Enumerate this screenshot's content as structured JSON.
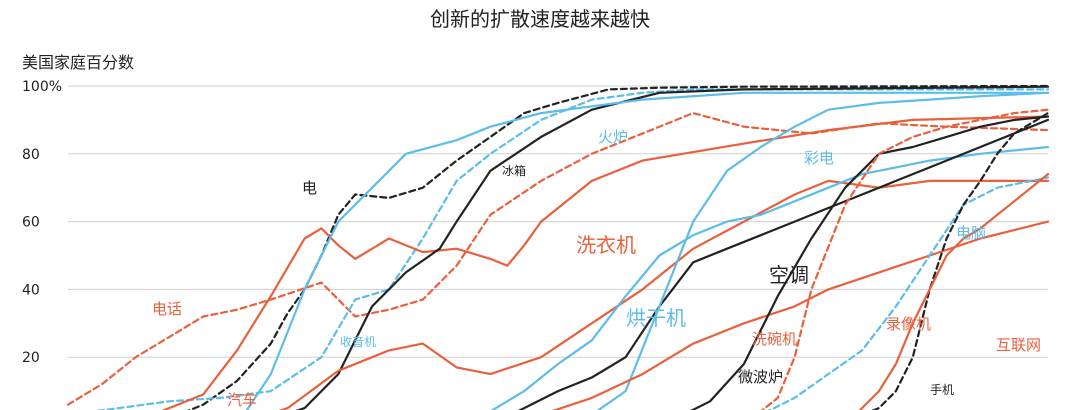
{
  "chart_data": {
    "type": "line",
    "title": "创新的扩散速度越来越快",
    "ylabel": "美国家庭百分数",
    "xlabel": "",
    "xlim": [
      1900,
      2016
    ],
    "ylim": [
      0,
      100
    ],
    "yticks": [
      {
        "value": 100,
        "label": "100%"
      },
      {
        "value": 80,
        "label": "80"
      },
      {
        "value": 60,
        "label": "60"
      },
      {
        "value": 40,
        "label": "40"
      },
      {
        "value": 20,
        "label": "20"
      }
    ],
    "grid": true,
    "colors": {
      "orange": "#e8603c",
      "blue": "#5bbde8",
      "black": "#222222"
    },
    "series": [
      {
        "name": "电",
        "color": "black",
        "dash": true,
        "x": [
          1908,
          1912,
          1916,
          1920,
          1924,
          1926,
          1928,
          1930,
          1932,
          1934,
          1938,
          1942,
          1946,
          1950,
          1954,
          1958,
          1964,
          1970,
          1980,
          2016
        ],
        "y": [
          0,
          2,
          6,
          13,
          24,
          33,
          40,
          50,
          62,
          68,
          67,
          70,
          78,
          85,
          92,
          95,
          99,
          99.5,
          99.8,
          100
        ]
      },
      {
        "name": "电话",
        "color": "orange",
        "dash": true,
        "x": [
          1900,
          1904,
          1908,
          1912,
          1916,
          1920,
          1924,
          1930,
          1934,
          1938,
          1942,
          1946,
          1950,
          1956,
          1962,
          1968,
          1974,
          1980,
          1988,
          1996,
          2004,
          2016
        ],
        "y": [
          6,
          12,
          20,
          26,
          32,
          34,
          37,
          42,
          32,
          34,
          37,
          47,
          62,
          72,
          80,
          86,
          92,
          88,
          86,
          89,
          88,
          87
        ]
      },
      {
        "name": "收音机",
        "color": "blue",
        "dash": true,
        "x": [
          1900,
          1906,
          1912,
          1918,
          1924,
          1930,
          1934,
          1938,
          1942,
          1946,
          1950,
          1956,
          1962,
          1968,
          1974,
          1980,
          2016
        ],
        "y": [
          3,
          5,
          7,
          8,
          10,
          20,
          37,
          40,
          55,
          72,
          80,
          90,
          96,
          98,
          99,
          99,
          99
        ]
      },
      {
        "name": "汽车",
        "color": "orange",
        "dash": false,
        "x": [
          1905,
          1910,
          1916,
          1920,
          1924,
          1928,
          1930,
          1932,
          1934,
          1938,
          1942,
          1946,
          1950,
          1952,
          1954,
          1956,
          1962,
          1968,
          1980,
          1990,
          2000,
          2016
        ],
        "y": [
          0,
          3,
          9,
          22,
          38,
          55,
          58,
          53,
          49,
          55,
          51,
          52,
          49,
          47,
          53,
          60,
          72,
          78,
          83,
          87,
          90,
          91
        ]
      },
      {
        "name": "冰箱",
        "color": "black",
        "dash": false,
        "x": [
          1922,
          1928,
          1932,
          1936,
          1940,
          1944,
          1946,
          1950,
          1956,
          1962,
          1970,
          1980,
          2016
        ],
        "y": [
          0,
          5,
          15,
          35,
          45,
          52,
          60,
          75,
          85,
          93,
          98,
          99,
          99.8
        ]
      },
      {
        "name": "火炉",
        "color": "blue",
        "dash": false,
        "x": [
          1920,
          1924,
          1928,
          1932,
          1936,
          1940,
          1946,
          1950,
          1956,
          1962,
          1968,
          1980,
          2016
        ],
        "y": [
          0,
          15,
          40,
          60,
          70,
          80,
          84,
          88,
          92,
          94,
          96,
          98,
          98
        ]
      },
      {
        "name": "洗衣机",
        "color": "orange",
        "dash": false,
        "x": [
          1920,
          1926,
          1932,
          1938,
          1942,
          1946,
          1950,
          1956,
          1962,
          1968,
          1974,
          1980,
          1986,
          1990,
          1996,
          2002,
          2016
        ],
        "y": [
          0,
          5,
          16,
          22,
          24,
          17,
          15,
          20,
          30,
          40,
          52,
          60,
          68,
          72,
          70,
          72,
          72
        ]
      },
      {
        "name": "烘干机",
        "color": "blue",
        "dash": false,
        "x": [
          1946,
          1950,
          1954,
          1958,
          1962,
          1966,
          1970,
          1974,
          1978,
          1982,
          1986,
          1990,
          1994,
          1998,
          2002,
          2008,
          2016
        ],
        "y": [
          0,
          4,
          10,
          18,
          25,
          38,
          50,
          56,
          60,
          62,
          66,
          70,
          74,
          76,
          78,
          80,
          82
        ]
      },
      {
        "name": "空调",
        "color": "black",
        "dash": false,
        "x": [
          1950,
          1954,
          1958,
          1962,
          1966,
          1970,
          1974,
          1978,
          1982,
          1986,
          1990,
          1994,
          1998,
          2002,
          2008,
          2016
        ],
        "y": [
          0,
          5,
          10,
          14,
          20,
          35,
          48,
          52,
          56,
          60,
          64,
          68,
          72,
          76,
          82,
          90
        ]
      },
      {
        "name": "彩电",
        "color": "blue",
        "dash": false,
        "x": [
          1954,
          1958,
          1962,
          1966,
          1970,
          1974,
          1978,
          1982,
          1986,
          1990,
          1996,
          2002,
          2008,
          2016
        ],
        "y": [
          0,
          1,
          3,
          10,
          35,
          60,
          75,
          82,
          88,
          93,
          95,
          96,
          97,
          98
        ]
      },
      {
        "name": "洗碗机",
        "color": "orange",
        "dash": false,
        "x": [
          1950,
          1956,
          1962,
          1968,
          1974,
          1980,
          1986,
          1990,
          1996,
          2002,
          2008,
          2016
        ],
        "y": [
          0,
          3,
          8,
          15,
          24,
          30,
          35,
          40,
          45,
          50,
          55,
          60
        ]
      },
      {
        "name": "微波炉",
        "color": "black",
        "dash": false,
        "x": [
          1970,
          1972,
          1976,
          1980,
          1984,
          1988,
          1992,
          1996,
          2000,
          2004,
          2008,
          2012,
          2016
        ],
        "y": [
          0,
          2,
          7,
          18,
          38,
          55,
          70,
          80,
          82,
          85,
          88,
          90,
          91
        ]
      },
      {
        "name": "录像机",
        "color": "orange",
        "dash": true,
        "x": [
          1976,
          1978,
          1980,
          1982,
          1984,
          1986,
          1988,
          1992,
          1996,
          2000,
          2004,
          2008,
          2012,
          2016
        ],
        "y": [
          0,
          1,
          2,
          4,
          8,
          20,
          40,
          65,
          80,
          85,
          88,
          90,
          92,
          93
        ]
      },
      {
        "name": "电脑",
        "color": "blue",
        "dash": true,
        "x": [
          1978,
          1982,
          1986,
          1990,
          1994,
          1998,
          2002,
          2006,
          2010,
          2016
        ],
        "y": [
          0,
          3,
          8,
          15,
          22,
          35,
          50,
          65,
          70,
          73
        ]
      },
      {
        "name": "手机",
        "color": "black",
        "dash": true,
        "x": [
          1986,
          1990,
          1994,
          1996,
          1998,
          2000,
          2002,
          2004,
          2006,
          2008,
          2010,
          2012,
          2016
        ],
        "y": [
          0,
          2,
          3,
          5,
          10,
          20,
          40,
          55,
          65,
          72,
          80,
          86,
          92
        ]
      },
      {
        "name": "互联网",
        "color": "orange",
        "dash": false,
        "x": [
          1992,
          1996,
          1998,
          2000,
          2002,
          2004,
          2006,
          2008,
          2010,
          2012,
          2014,
          2016
        ],
        "y": [
          0,
          10,
          18,
          30,
          40,
          50,
          55,
          58,
          62,
          66,
          70,
          74
        ]
      }
    ],
    "annotations": [
      {
        "text": "电",
        "series": "电"
      },
      {
        "text": "电话",
        "series": "电话"
      },
      {
        "text": "收音机",
        "series": "收音机"
      },
      {
        "text": "汽车",
        "series": "汽车"
      },
      {
        "text": "冰箱",
        "series": "冰箱"
      },
      {
        "text": "火炉",
        "series": "火炉"
      },
      {
        "text": "洗衣机",
        "series": "洗衣机"
      },
      {
        "text": "烘干机",
        "series": "烘干机"
      },
      {
        "text": "空调",
        "series": "空调"
      },
      {
        "text": "彩电",
        "series": "彩电"
      },
      {
        "text": "洗碗机",
        "series": "洗碗机"
      },
      {
        "text": "微波炉",
        "series": "微波炉"
      },
      {
        "text": "录像机",
        "series": "录像机"
      },
      {
        "text": "电脑",
        "series": "电脑"
      },
      {
        "text": "手机",
        "series": "手机"
      },
      {
        "text": "互联网",
        "series": "互联网"
      }
    ]
  }
}
